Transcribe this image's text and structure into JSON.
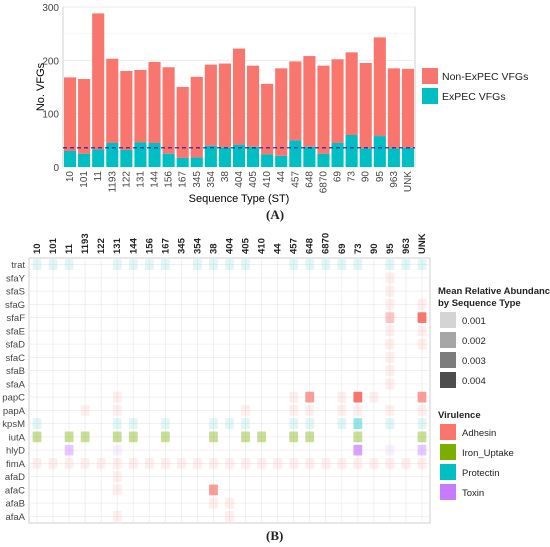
{
  "panel_labels": {
    "a": "(A)",
    "b": "(B)"
  },
  "chart_data": [
    {
      "type": "bar",
      "stacked": true,
      "xlabel": "Sequence Type (ST)",
      "ylabel": "No. VFGs",
      "ylim": [
        0,
        300
      ],
      "yticks": [
        0,
        100,
        200,
        300
      ],
      "categories": [
        "10",
        "101",
        "11",
        "1193",
        "122",
        "131",
        "144",
        "156",
        "167",
        "345",
        "354",
        "38",
        "404",
        "405",
        "410",
        "44",
        "457",
        "648",
        "6870",
        "69",
        "73",
        "90",
        "95",
        "963",
        "UNK"
      ],
      "series": [
        {
          "name": "ExPEC VFGs",
          "color": "#00BFC4",
          "values": [
            30,
            25,
            33,
            45,
            32,
            46,
            45,
            25,
            17,
            18,
            40,
            37,
            42,
            38,
            24,
            21,
            50,
            38,
            25,
            45,
            60,
            35,
            58,
            35,
            36
          ]
        },
        {
          "name": "Non-ExPEC VFGs",
          "color": "#F8766D",
          "values": [
            138,
            140,
            255,
            158,
            148,
            136,
            152,
            162,
            133,
            151,
            152,
            157,
            180,
            152,
            132,
            164,
            148,
            170,
            165,
            157,
            155,
            160,
            185,
            150,
            148
          ]
        }
      ],
      "reference_line": {
        "y": 36,
        "style": "dashed",
        "color": "#1a1aa0"
      },
      "legend": {
        "placement": "right",
        "entries": [
          "Non-ExPEC VFGs",
          "ExPEC VFGs"
        ]
      },
      "grid": true
    },
    {
      "type": "heatmap",
      "x_categories": [
        "10",
        "101",
        "11",
        "1193",
        "122",
        "131",
        "144",
        "156",
        "167",
        "345",
        "354",
        "38",
        "404",
        "405",
        "410",
        "44",
        "457",
        "648",
        "6870",
        "69",
        "73",
        "90",
        "95",
        "963",
        "UNK"
      ],
      "y_categories": [
        "trat",
        "sfaY",
        "sfaS",
        "sfaG",
        "sfaF",
        "sfaE",
        "sfaD",
        "sfaC",
        "sfaB",
        "sfaA",
        "papC",
        "papA",
        "kpsM",
        "iutA",
        "hlyD",
        "fimA",
        "afaD",
        "afaC",
        "afaB",
        "afaA"
      ],
      "gene_class": {
        "trat": "Protectin",
        "sfaY": "Adhesin",
        "sfaS": "Adhesin",
        "sfaG": "Adhesin",
        "sfaF": "Adhesin",
        "sfaE": "Adhesin",
        "sfaD": "Adhesin",
        "sfaC": "Adhesin",
        "sfaB": "Adhesin",
        "sfaA": "Adhesin",
        "papC": "Adhesin",
        "papA": "Adhesin",
        "kpsM": "Protectin",
        "iutA": "Iron_Uptake",
        "hlyD": "Toxin",
        "fimA": "Adhesin",
        "afaD": "Adhesin",
        "afaC": "Adhesin",
        "afaB": "Adhesin",
        "afaA": "Adhesin"
      },
      "cells": [
        [
          "10",
          "trat",
          0.001
        ],
        [
          "101",
          "trat",
          0.001
        ],
        [
          "11",
          "trat",
          0.001
        ],
        [
          "131",
          "trat",
          0.001
        ],
        [
          "144",
          "trat",
          0.001
        ],
        [
          "156",
          "trat",
          0.001
        ],
        [
          "167",
          "trat",
          0.001
        ],
        [
          "354",
          "trat",
          0.001
        ],
        [
          "38",
          "trat",
          0.001
        ],
        [
          "404",
          "trat",
          0.001
        ],
        [
          "405",
          "trat",
          0.001
        ],
        [
          "457",
          "trat",
          0.001
        ],
        [
          "648",
          "trat",
          0.001
        ],
        [
          "6870",
          "trat",
          0.001
        ],
        [
          "69",
          "trat",
          0.001
        ],
        [
          "73",
          "trat",
          0.001
        ],
        [
          "95",
          "trat",
          0.001
        ],
        [
          "963",
          "trat",
          0.001
        ],
        [
          "UNK",
          "trat",
          0.001
        ],
        [
          "95",
          "sfaY",
          0.001
        ],
        [
          "95",
          "sfaS",
          0.001
        ],
        [
          "95",
          "sfaG",
          0.001
        ],
        [
          "95",
          "sfaF",
          0.002
        ],
        [
          "UNK",
          "sfaF",
          0.004
        ],
        [
          "UNK",
          "sfaG",
          0.001
        ],
        [
          "95",
          "sfaE",
          0.001
        ],
        [
          "UNK",
          "sfaE",
          0.001
        ],
        [
          "95",
          "sfaD",
          0.001
        ],
        [
          "UNK",
          "sfaD",
          0.001
        ],
        [
          "95",
          "sfaC",
          0.001
        ],
        [
          "95",
          "sfaB",
          0.001
        ],
        [
          "95",
          "sfaA",
          0.001
        ],
        [
          "131",
          "papC",
          0.001
        ],
        [
          "457",
          "papC",
          0.001
        ],
        [
          "648",
          "papC",
          0.003
        ],
        [
          "69",
          "papC",
          0.001
        ],
        [
          "73",
          "papC",
          0.004
        ],
        [
          "90",
          "papC",
          0.001
        ],
        [
          "UNK",
          "papC",
          0.003
        ],
        [
          "1193",
          "papA",
          0.001
        ],
        [
          "131",
          "papA",
          0.001
        ],
        [
          "405",
          "papA",
          0.001
        ],
        [
          "457",
          "papA",
          0.001
        ],
        [
          "648",
          "papA",
          0.001
        ],
        [
          "69",
          "papA",
          0.001
        ],
        [
          "73",
          "papA",
          0.001
        ],
        [
          "95",
          "papA",
          0.001
        ],
        [
          "UNK",
          "papA",
          0.001
        ],
        [
          "10",
          "kpsM",
          0.001
        ],
        [
          "131",
          "kpsM",
          0.001
        ],
        [
          "144",
          "kpsM",
          0.001
        ],
        [
          "167",
          "kpsM",
          0.001
        ],
        [
          "38",
          "kpsM",
          0.001
        ],
        [
          "404",
          "kpsM",
          0.001
        ],
        [
          "405",
          "kpsM",
          0.001
        ],
        [
          "457",
          "kpsM",
          0.001
        ],
        [
          "648",
          "kpsM",
          0.001
        ],
        [
          "69",
          "kpsM",
          0.001
        ],
        [
          "73",
          "kpsM",
          0.002
        ],
        [
          "95",
          "kpsM",
          0.001
        ],
        [
          "UNK",
          "kpsM",
          0.001
        ],
        [
          "10",
          "iutA",
          0.002
        ],
        [
          "11",
          "iutA",
          0.002
        ],
        [
          "1193",
          "iutA",
          0.002
        ],
        [
          "131",
          "iutA",
          0.002
        ],
        [
          "144",
          "iutA",
          0.002
        ],
        [
          "167",
          "iutA",
          0.002
        ],
        [
          "38",
          "iutA",
          0.002
        ],
        [
          "405",
          "iutA",
          0.002
        ],
        [
          "410",
          "iutA",
          0.002
        ],
        [
          "457",
          "iutA",
          0.002
        ],
        [
          "648",
          "iutA",
          0.002
        ],
        [
          "73",
          "iutA",
          0.002
        ],
        [
          "UNK",
          "iutA",
          0.002
        ],
        [
          "11",
          "hlyD",
          0.002
        ],
        [
          "131",
          "hlyD",
          0.001
        ],
        [
          "73",
          "hlyD",
          0.003
        ],
        [
          "95",
          "hlyD",
          0.001
        ],
        [
          "UNK",
          "hlyD",
          0.002
        ],
        [
          "10",
          "fimA",
          0.001
        ],
        [
          "101",
          "fimA",
          0.001
        ],
        [
          "11",
          "fimA",
          0.001
        ],
        [
          "1193",
          "fimA",
          0.001
        ],
        [
          "122",
          "fimA",
          0.001
        ],
        [
          "131",
          "fimA",
          0.001
        ],
        [
          "144",
          "fimA",
          0.001
        ],
        [
          "156",
          "fimA",
          0.001
        ],
        [
          "167",
          "fimA",
          0.001
        ],
        [
          "345",
          "fimA",
          0.001
        ],
        [
          "354",
          "fimA",
          0.001
        ],
        [
          "38",
          "fimA",
          0.001
        ],
        [
          "404",
          "fimA",
          0.001
        ],
        [
          "405",
          "fimA",
          0.001
        ],
        [
          "410",
          "fimA",
          0.001
        ],
        [
          "44",
          "fimA",
          0.001
        ],
        [
          "457",
          "fimA",
          0.001
        ],
        [
          "648",
          "fimA",
          0.001
        ],
        [
          "6870",
          "fimA",
          0.001
        ],
        [
          "69",
          "fimA",
          0.001
        ],
        [
          "73",
          "fimA",
          0.001
        ],
        [
          "90",
          "fimA",
          0.001
        ],
        [
          "95",
          "fimA",
          0.001
        ],
        [
          "963",
          "fimA",
          0.001
        ],
        [
          "UNK",
          "fimA",
          0.001
        ],
        [
          "131",
          "afaD",
          0.001
        ],
        [
          "131",
          "afaC",
          0.001
        ],
        [
          "38",
          "afaC",
          0.003
        ],
        [
          "38",
          "afaB",
          0.001
        ],
        [
          "404",
          "afaB",
          0.001
        ],
        [
          "131",
          "afaA",
          0.001
        ],
        [
          "404",
          "afaA",
          0.001
        ]
      ],
      "legend_size": {
        "title_lines": [
          "Mean Relative Abundance",
          "by Sequence Type"
        ],
        "levels": [
          "0.001",
          "0.002",
          "0.003",
          "0.004"
        ],
        "shades": [
          "#d4d4d4",
          "#a6a6a6",
          "#7c7c7c",
          "#4d4d4d"
        ]
      },
      "legend_class": {
        "title": "Virulence",
        "entries": [
          "Adhesin",
          "Iron_Uptake",
          "Protectin",
          "Toxin"
        ],
        "colors": {
          "Adhesin": "#F8766D",
          "Iron_Uptake": "#7CAE00",
          "Protectin": "#00BFC4",
          "Toxin": "#C77CFF"
        }
      }
    }
  ]
}
